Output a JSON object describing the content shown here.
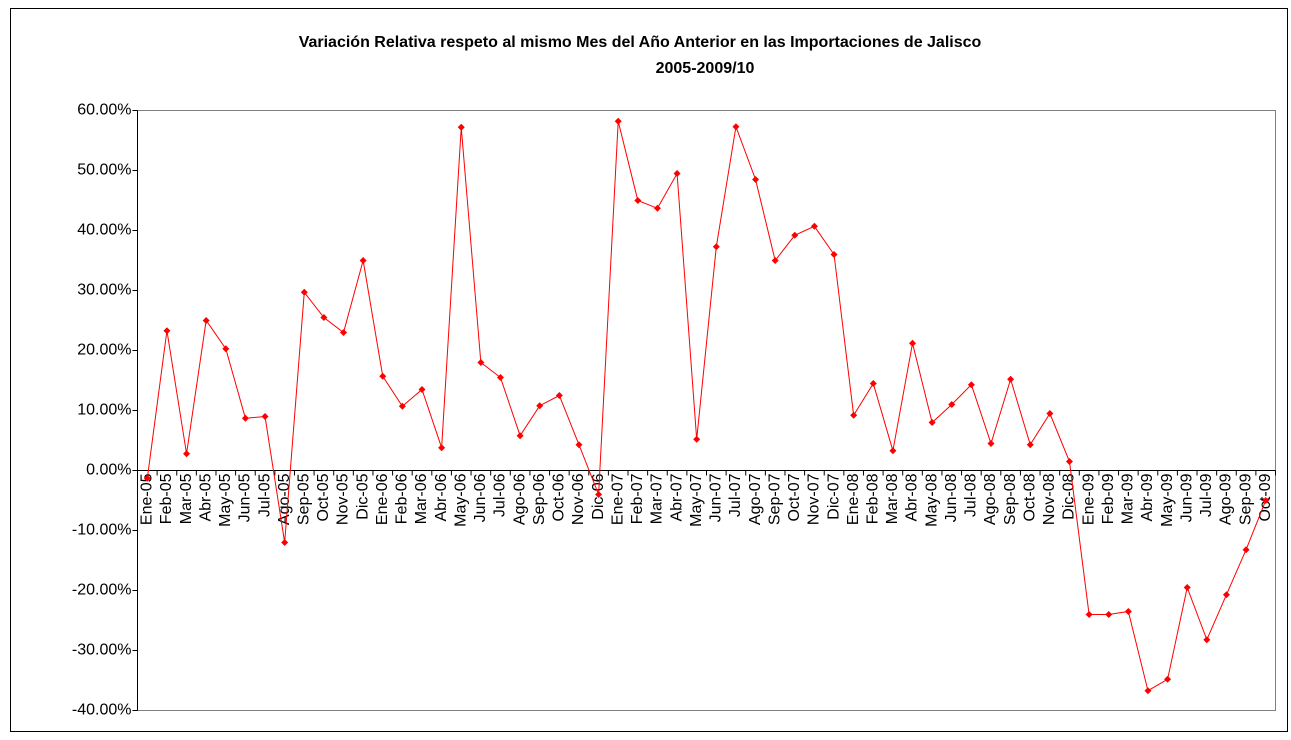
{
  "chart_data": {
    "type": "line",
    "title": "Variación Relativa respeto al mismo Mes del Año Anterior en las Importaciones de Jalisco",
    "subtitle": "2005-2009/10",
    "categories": [
      "Ene-05",
      "Feb-05",
      "Mar-05",
      "Abr-05",
      "May-05",
      "Jun-05",
      "Jul-05",
      "Ago-05",
      "Sep-05",
      "Oct-05",
      "Nov-05",
      "Dic-05",
      "Ene-06",
      "Feb-06",
      "Mar-06",
      "Abr-06",
      "May-06",
      "Jun-06",
      "Jul-06",
      "Ago-06",
      "Sep-06",
      "Oct-06",
      "Nov-06",
      "Dic-06",
      "Ene-07",
      "Feb-07",
      "Mar-07",
      "Abr-07",
      "May-07",
      "Jun-07",
      "Jul-07",
      "Ago-07",
      "Sep-07",
      "Oct-07",
      "Nov-07",
      "Dic-07",
      "Ene-08",
      "Feb-08",
      "Mar-08",
      "Abr-08",
      "May-08",
      "Jun-08",
      "Jul-08",
      "Ago-08",
      "Sep-08",
      "Oct-08",
      "Nov-08",
      "Dic-08",
      "Ene-09",
      "Feb-09",
      "Mar-09",
      "Abr-09",
      "May-09",
      "Jun-09",
      "Jul-09",
      "Ago-09",
      "Sep-09",
      "Oct-09"
    ],
    "values": [
      -1.3,
      23.3,
      2.8,
      25,
      20.3,
      8.7,
      9,
      -12,
      29.7,
      25.5,
      23,
      35,
      15.7,
      10.7,
      13.5,
      3.8,
      57.2,
      18,
      15.5,
      5.8,
      10.8,
      12.5,
      4.3,
      -4,
      58.2,
      45,
      43.7,
      49.5,
      5.2,
      37.3,
      57.3,
      48.5,
      35,
      39.2,
      40.7,
      36,
      9.2,
      14.5,
      3.3,
      21.2,
      8,
      11,
      14.3,
      4.5,
      15.2,
      4.3,
      9.5,
      1.5,
      -24,
      -24,
      -23.5,
      -36.7,
      -34.8,
      -19.5,
      -28.2,
      -20.7,
      -13.2,
      -5
    ],
    "color": "#ff0000",
    "ylim": [
      -40,
      60
    ],
    "yticks": [
      {
        "value": -40,
        "label": "-40.00%"
      },
      {
        "value": -30,
        "label": "-30.00%"
      },
      {
        "value": -20,
        "label": "-20.00%"
      },
      {
        "value": -10,
        "label": "-10.00%"
      },
      {
        "value": 0,
        "label": "0.00%"
      },
      {
        "value": 10,
        "label": "10.00%"
      },
      {
        "value": 20,
        "label": "20.00%"
      },
      {
        "value": 30,
        "label": "30.00%"
      },
      {
        "value": 40,
        "label": "40.00%"
      },
      {
        "value": 50,
        "label": "50.00%"
      },
      {
        "value": 60,
        "label": "60.00%"
      }
    ],
    "grid": false
  }
}
